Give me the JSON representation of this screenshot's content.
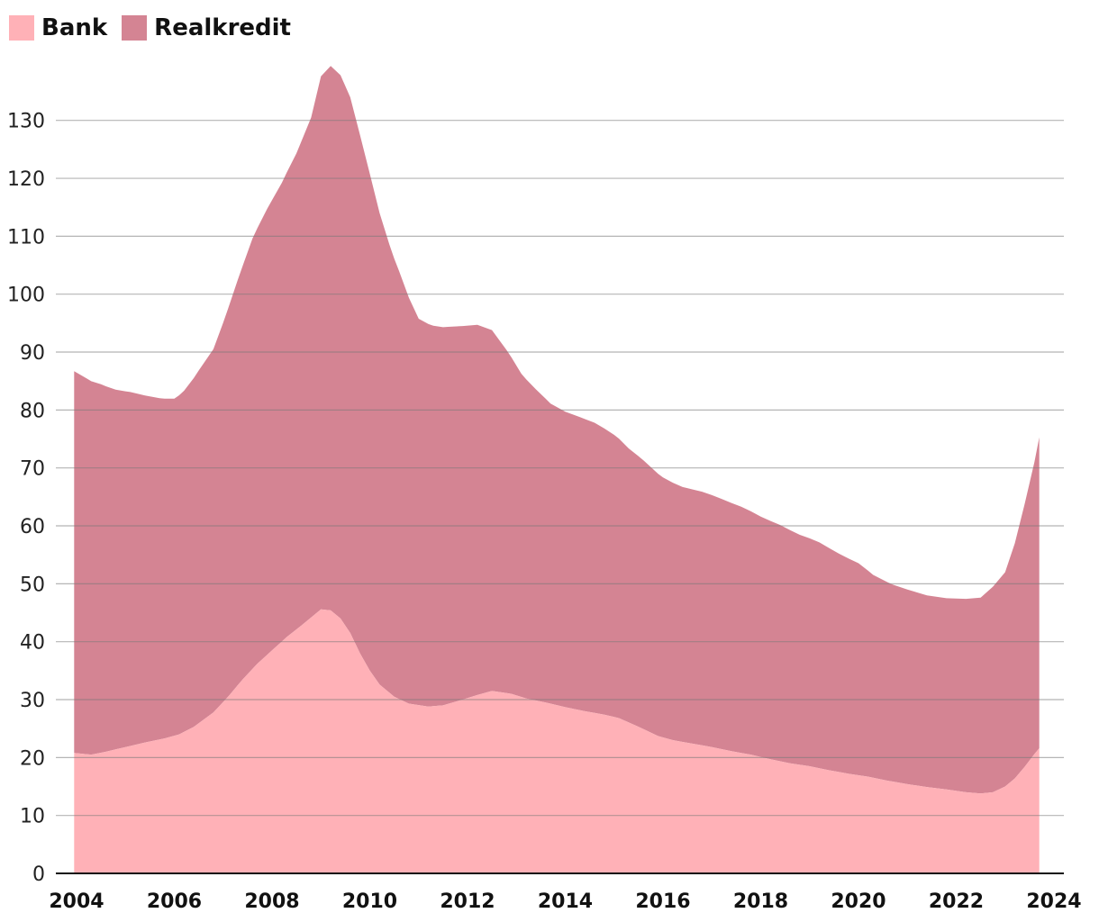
{
  "chart_data": {
    "type": "area",
    "stacked": true,
    "legend_position": "top-left",
    "grid": true,
    "xlim": [
      2004,
      2024
    ],
    "ylim": [
      0,
      140
    ],
    "x_ticks": [
      2004,
      2006,
      2008,
      2010,
      2012,
      2014,
      2016,
      2018,
      2020,
      2022,
      2024
    ],
    "y_ticks": [
      0,
      10,
      20,
      30,
      40,
      50,
      60,
      70,
      80,
      90,
      100,
      110,
      120,
      130
    ],
    "series": [
      {
        "name": "Bank",
        "color": "#ffb1b7",
        "points": [
          [
            2003.95,
            20.8
          ],
          [
            2004.3,
            20.5
          ],
          [
            2004.6,
            21.0
          ],
          [
            2005.0,
            21.8
          ],
          [
            2005.4,
            22.6
          ],
          [
            2005.8,
            23.3
          ],
          [
            2006.1,
            24.0
          ],
          [
            2006.4,
            25.3
          ],
          [
            2006.8,
            27.8
          ],
          [
            2007.1,
            30.5
          ],
          [
            2007.4,
            33.5
          ],
          [
            2007.7,
            36.2
          ],
          [
            2008.0,
            38.5
          ],
          [
            2008.3,
            40.8
          ],
          [
            2008.6,
            42.8
          ],
          [
            2008.8,
            44.2
          ],
          [
            2009.0,
            45.6
          ],
          [
            2009.2,
            45.4
          ],
          [
            2009.4,
            44.0
          ],
          [
            2009.6,
            41.5
          ],
          [
            2009.8,
            38.0
          ],
          [
            2010.0,
            35.0
          ],
          [
            2010.2,
            32.6
          ],
          [
            2010.5,
            30.5
          ],
          [
            2010.8,
            29.3
          ],
          [
            2011.2,
            28.8
          ],
          [
            2011.5,
            29.0
          ],
          [
            2011.9,
            30.0
          ],
          [
            2012.2,
            30.8
          ],
          [
            2012.5,
            31.5
          ],
          [
            2012.9,
            31.0
          ],
          [
            2013.2,
            30.2
          ],
          [
            2013.6,
            29.5
          ],
          [
            2014.0,
            28.7
          ],
          [
            2014.4,
            28.0
          ],
          [
            2014.8,
            27.4
          ],
          [
            2015.1,
            26.8
          ],
          [
            2015.5,
            25.3
          ],
          [
            2015.9,
            23.7
          ],
          [
            2016.2,
            23.0
          ],
          [
            2016.6,
            22.4
          ],
          [
            2017.0,
            21.8
          ],
          [
            2017.4,
            21.1
          ],
          [
            2017.8,
            20.5
          ],
          [
            2018.2,
            19.7
          ],
          [
            2018.6,
            19.0
          ],
          [
            2019.0,
            18.5
          ],
          [
            2019.4,
            17.8
          ],
          [
            2019.8,
            17.2
          ],
          [
            2020.2,
            16.7
          ],
          [
            2020.6,
            16.0
          ],
          [
            2021.0,
            15.4
          ],
          [
            2021.4,
            14.9
          ],
          [
            2021.8,
            14.5
          ],
          [
            2022.2,
            14.0
          ],
          [
            2022.5,
            13.8
          ],
          [
            2022.75,
            14.0
          ],
          [
            2023.0,
            15.0
          ],
          [
            2023.2,
            16.4
          ],
          [
            2023.4,
            18.4
          ],
          [
            2023.6,
            20.6
          ],
          [
            2023.7,
            21.6
          ]
        ]
      },
      {
        "name": "Realkredit",
        "color": "#d48493",
        "points": [
          [
            2003.95,
            65.9
          ],
          [
            2004.2,
            64.9
          ],
          [
            2004.5,
            63.6
          ],
          [
            2004.8,
            62.1
          ],
          [
            2005.1,
            61.1
          ],
          [
            2005.4,
            59.9
          ],
          [
            2005.7,
            58.9
          ],
          [
            2006.0,
            58.2
          ],
          [
            2006.2,
            58.9
          ],
          [
            2006.5,
            60.9
          ],
          [
            2006.8,
            62.7
          ],
          [
            2007.0,
            65.5
          ],
          [
            2007.3,
            70.0
          ],
          [
            2007.6,
            74.3
          ],
          [
            2007.9,
            77.0
          ],
          [
            2008.2,
            79.2
          ],
          [
            2008.5,
            82.2
          ],
          [
            2008.8,
            86.3
          ],
          [
            2009.0,
            92.0
          ],
          [
            2009.2,
            94.0
          ],
          [
            2009.4,
            93.8
          ],
          [
            2009.6,
            92.5
          ],
          [
            2009.8,
            89.5
          ],
          [
            2010.0,
            85.8
          ],
          [
            2010.2,
            81.4
          ],
          [
            2010.4,
            77.4
          ],
          [
            2010.6,
            73.9
          ],
          [
            2010.8,
            70.1
          ],
          [
            2011.0,
            66.7
          ],
          [
            2011.3,
            65.7
          ],
          [
            2011.6,
            65.1
          ],
          [
            2011.9,
            64.5
          ],
          [
            2012.2,
            63.9
          ],
          [
            2012.5,
            62.3
          ],
          [
            2012.8,
            59.2
          ],
          [
            2013.1,
            55.8
          ],
          [
            2013.4,
            53.7
          ],
          [
            2013.7,
            51.8
          ],
          [
            2014.0,
            51.0
          ],
          [
            2014.3,
            50.6
          ],
          [
            2014.6,
            50.1
          ],
          [
            2015.0,
            48.7
          ],
          [
            2015.3,
            47.3
          ],
          [
            2015.6,
            46.4
          ],
          [
            2016.0,
            44.9
          ],
          [
            2016.4,
            44.0
          ],
          [
            2016.8,
            43.8
          ],
          [
            2017.2,
            43.2
          ],
          [
            2017.6,
            42.5
          ],
          [
            2018.0,
            41.5
          ],
          [
            2018.4,
            40.8
          ],
          [
            2018.8,
            39.7
          ],
          [
            2019.2,
            39.0
          ],
          [
            2019.6,
            37.7
          ],
          [
            2020.0,
            36.6
          ],
          [
            2020.3,
            35.0
          ],
          [
            2020.7,
            34.0
          ],
          [
            2021.0,
            33.6
          ],
          [
            2021.4,
            33.1
          ],
          [
            2021.8,
            33.0
          ],
          [
            2022.2,
            33.4
          ],
          [
            2022.5,
            33.8
          ],
          [
            2022.75,
            35.5
          ],
          [
            2023.0,
            37.0
          ],
          [
            2023.2,
            40.6
          ],
          [
            2023.4,
            45.4
          ],
          [
            2023.6,
            50.4
          ],
          [
            2023.7,
            53.7
          ]
        ]
      }
    ]
  }
}
